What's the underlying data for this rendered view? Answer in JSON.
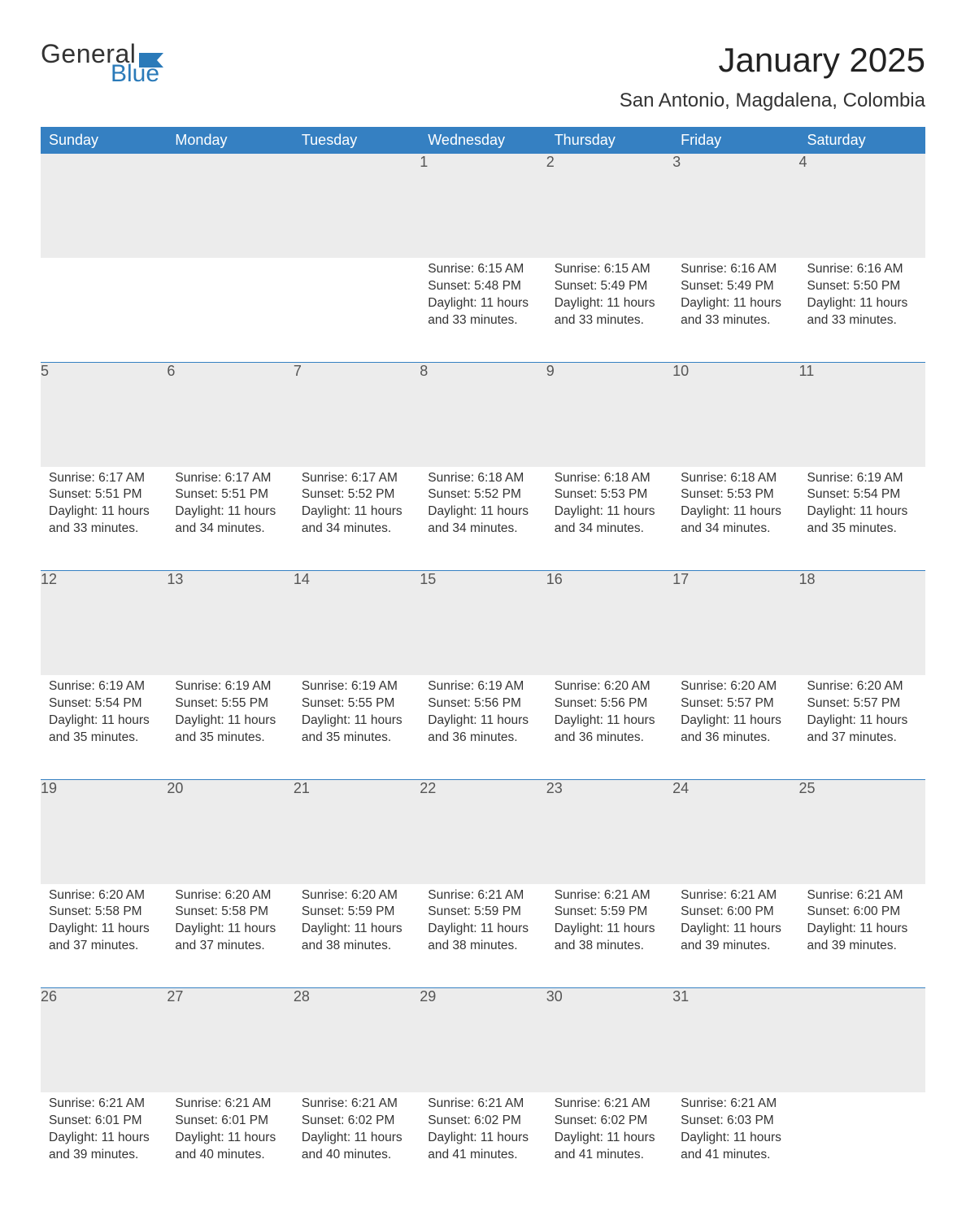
{
  "logo": {
    "word1": "General",
    "word2": "Blue",
    "accent_color": "#2a7ab9"
  },
  "header": {
    "month_title": "January 2025",
    "location": "San Antonio, Magdalena, Colombia"
  },
  "colors": {
    "header_bg": "#3580c2",
    "header_text": "#ffffff",
    "daynum_bg": "#ececec",
    "text": "#333333",
    "rule": "#3580c2",
    "page_bg": "#ffffff"
  },
  "fonts": {
    "title_size_pt": 32,
    "location_size_pt": 18,
    "dayheader_size_pt": 14,
    "body_size_pt": 12
  },
  "calendar": {
    "day_headers": [
      "Sunday",
      "Monday",
      "Tuesday",
      "Wednesday",
      "Thursday",
      "Friday",
      "Saturday"
    ],
    "weeks": [
      [
        null,
        null,
        null,
        {
          "n": "1",
          "sunrise": "Sunrise: 6:15 AM",
          "sunset": "Sunset: 5:48 PM",
          "daylight": "Daylight: 11 hours and 33 minutes."
        },
        {
          "n": "2",
          "sunrise": "Sunrise: 6:15 AM",
          "sunset": "Sunset: 5:49 PM",
          "daylight": "Daylight: 11 hours and 33 minutes."
        },
        {
          "n": "3",
          "sunrise": "Sunrise: 6:16 AM",
          "sunset": "Sunset: 5:49 PM",
          "daylight": "Daylight: 11 hours and 33 minutes."
        },
        {
          "n": "4",
          "sunrise": "Sunrise: 6:16 AM",
          "sunset": "Sunset: 5:50 PM",
          "daylight": "Daylight: 11 hours and 33 minutes."
        }
      ],
      [
        {
          "n": "5",
          "sunrise": "Sunrise: 6:17 AM",
          "sunset": "Sunset: 5:51 PM",
          "daylight": "Daylight: 11 hours and 33 minutes."
        },
        {
          "n": "6",
          "sunrise": "Sunrise: 6:17 AM",
          "sunset": "Sunset: 5:51 PM",
          "daylight": "Daylight: 11 hours and 34 minutes."
        },
        {
          "n": "7",
          "sunrise": "Sunrise: 6:17 AM",
          "sunset": "Sunset: 5:52 PM",
          "daylight": "Daylight: 11 hours and 34 minutes."
        },
        {
          "n": "8",
          "sunrise": "Sunrise: 6:18 AM",
          "sunset": "Sunset: 5:52 PM",
          "daylight": "Daylight: 11 hours and 34 minutes."
        },
        {
          "n": "9",
          "sunrise": "Sunrise: 6:18 AM",
          "sunset": "Sunset: 5:53 PM",
          "daylight": "Daylight: 11 hours and 34 minutes."
        },
        {
          "n": "10",
          "sunrise": "Sunrise: 6:18 AM",
          "sunset": "Sunset: 5:53 PM",
          "daylight": "Daylight: 11 hours and 34 minutes."
        },
        {
          "n": "11",
          "sunrise": "Sunrise: 6:19 AM",
          "sunset": "Sunset: 5:54 PM",
          "daylight": "Daylight: 11 hours and 35 minutes."
        }
      ],
      [
        {
          "n": "12",
          "sunrise": "Sunrise: 6:19 AM",
          "sunset": "Sunset: 5:54 PM",
          "daylight": "Daylight: 11 hours and 35 minutes."
        },
        {
          "n": "13",
          "sunrise": "Sunrise: 6:19 AM",
          "sunset": "Sunset: 5:55 PM",
          "daylight": "Daylight: 11 hours and 35 minutes."
        },
        {
          "n": "14",
          "sunrise": "Sunrise: 6:19 AM",
          "sunset": "Sunset: 5:55 PM",
          "daylight": "Daylight: 11 hours and 35 minutes."
        },
        {
          "n": "15",
          "sunrise": "Sunrise: 6:19 AM",
          "sunset": "Sunset: 5:56 PM",
          "daylight": "Daylight: 11 hours and 36 minutes."
        },
        {
          "n": "16",
          "sunrise": "Sunrise: 6:20 AM",
          "sunset": "Sunset: 5:56 PM",
          "daylight": "Daylight: 11 hours and 36 minutes."
        },
        {
          "n": "17",
          "sunrise": "Sunrise: 6:20 AM",
          "sunset": "Sunset: 5:57 PM",
          "daylight": "Daylight: 11 hours and 36 minutes."
        },
        {
          "n": "18",
          "sunrise": "Sunrise: 6:20 AM",
          "sunset": "Sunset: 5:57 PM",
          "daylight": "Daylight: 11 hours and 37 minutes."
        }
      ],
      [
        {
          "n": "19",
          "sunrise": "Sunrise: 6:20 AM",
          "sunset": "Sunset: 5:58 PM",
          "daylight": "Daylight: 11 hours and 37 minutes."
        },
        {
          "n": "20",
          "sunrise": "Sunrise: 6:20 AM",
          "sunset": "Sunset: 5:58 PM",
          "daylight": "Daylight: 11 hours and 37 minutes."
        },
        {
          "n": "21",
          "sunrise": "Sunrise: 6:20 AM",
          "sunset": "Sunset: 5:59 PM",
          "daylight": "Daylight: 11 hours and 38 minutes."
        },
        {
          "n": "22",
          "sunrise": "Sunrise: 6:21 AM",
          "sunset": "Sunset: 5:59 PM",
          "daylight": "Daylight: 11 hours and 38 minutes."
        },
        {
          "n": "23",
          "sunrise": "Sunrise: 6:21 AM",
          "sunset": "Sunset: 5:59 PM",
          "daylight": "Daylight: 11 hours and 38 minutes."
        },
        {
          "n": "24",
          "sunrise": "Sunrise: 6:21 AM",
          "sunset": "Sunset: 6:00 PM",
          "daylight": "Daylight: 11 hours and 39 minutes."
        },
        {
          "n": "25",
          "sunrise": "Sunrise: 6:21 AM",
          "sunset": "Sunset: 6:00 PM",
          "daylight": "Daylight: 11 hours and 39 minutes."
        }
      ],
      [
        {
          "n": "26",
          "sunrise": "Sunrise: 6:21 AM",
          "sunset": "Sunset: 6:01 PM",
          "daylight": "Daylight: 11 hours and 39 minutes."
        },
        {
          "n": "27",
          "sunrise": "Sunrise: 6:21 AM",
          "sunset": "Sunset: 6:01 PM",
          "daylight": "Daylight: 11 hours and 40 minutes."
        },
        {
          "n": "28",
          "sunrise": "Sunrise: 6:21 AM",
          "sunset": "Sunset: 6:02 PM",
          "daylight": "Daylight: 11 hours and 40 minutes."
        },
        {
          "n": "29",
          "sunrise": "Sunrise: 6:21 AM",
          "sunset": "Sunset: 6:02 PM",
          "daylight": "Daylight: 11 hours and 41 minutes."
        },
        {
          "n": "30",
          "sunrise": "Sunrise: 6:21 AM",
          "sunset": "Sunset: 6:02 PM",
          "daylight": "Daylight: 11 hours and 41 minutes."
        },
        {
          "n": "31",
          "sunrise": "Sunrise: 6:21 AM",
          "sunset": "Sunset: 6:03 PM",
          "daylight": "Daylight: 11 hours and 41 minutes."
        },
        null
      ]
    ]
  }
}
